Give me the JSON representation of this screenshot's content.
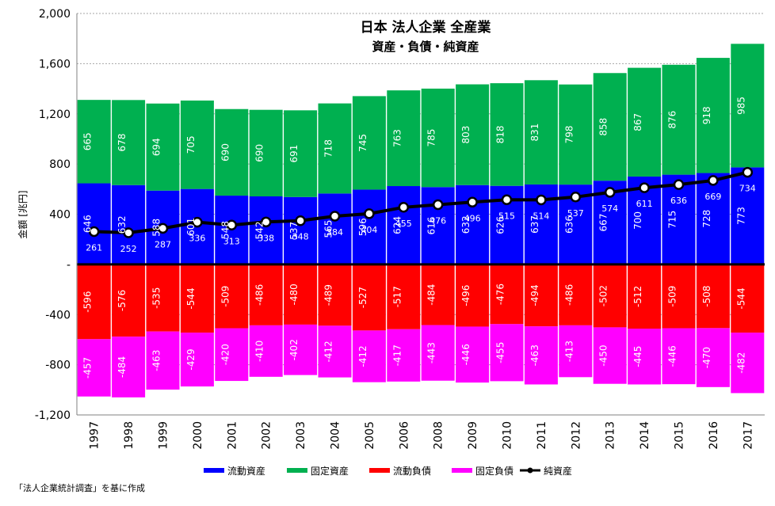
{
  "chart_data": {
    "type": "bar",
    "title": "日本 法人企業 全産業",
    "subtitle": "資産・負債・純資産",
    "xlabel": "",
    "ylabel": "金額 [兆円]",
    "ylim": [
      -1200,
      2000
    ],
    "y_ticks": [
      {
        "value": 2000,
        "label": "2,000"
      },
      {
        "value": 1600,
        "label": "1,600"
      },
      {
        "value": 1200,
        "label": "1,200"
      },
      {
        "value": 800,
        "label": "800"
      },
      {
        "value": 400,
        "label": "400"
      },
      {
        "value": 0,
        "label": "-"
      },
      {
        "value": -400,
        "label": "-400"
      },
      {
        "value": -800,
        "label": "-800"
      },
      {
        "value": -1200,
        "label": "-1,200"
      }
    ],
    "grid": true,
    "legend_position": "bottom",
    "categories": [
      "1997",
      "1998",
      "1999",
      "2000",
      "2001",
      "2002",
      "2003",
      "2004",
      "2005",
      "2006",
      "2008",
      "2009",
      "2010",
      "2011",
      "2012",
      "2013",
      "2014",
      "2015",
      "2016",
      "2017"
    ],
    "series": [
      {
        "name": "流動資産",
        "kind": "bar",
        "color": "#0000ff",
        "values": [
          646,
          632,
          588,
          601,
          548,
          542,
          537,
          565,
          596,
          624,
          616,
          632,
          626,
          637,
          636,
          667,
          700,
          715,
          728,
          773
        ]
      },
      {
        "name": "固定資産",
        "kind": "bar",
        "color": "#00b050",
        "values": [
          665,
          678,
          694,
          705,
          690,
          690,
          691,
          718,
          745,
          763,
          785,
          803,
          818,
          831,
          798,
          858,
          867,
          876,
          918,
          985
        ]
      },
      {
        "name": "流動負債",
        "kind": "bar",
        "color": "#ff0000",
        "values": [
          -596,
          -576,
          -535,
          -544,
          -509,
          -486,
          -480,
          -489,
          -527,
          -517,
          -484,
          -496,
          -476,
          -494,
          -486,
          -502,
          -512,
          -509,
          -508,
          -544
        ]
      },
      {
        "name": "固定負債",
        "kind": "bar",
        "color": "#ff00ff",
        "values": [
          -457,
          -484,
          -463,
          -429,
          -420,
          -410,
          -402,
          -412,
          -412,
          -417,
          -443,
          -446,
          -455,
          -463,
          -413,
          -450,
          -445,
          -446,
          -470,
          -482
        ]
      },
      {
        "name": "純資産",
        "kind": "line",
        "color": "#000000",
        "values": [
          261,
          252,
          287,
          336,
          313,
          338,
          348,
          384,
          404,
          455,
          476,
          496,
          515,
          514,
          537,
          574,
          611,
          636,
          669,
          734
        ]
      }
    ]
  },
  "footnote": "「法人企業統計調査」を基に作成"
}
